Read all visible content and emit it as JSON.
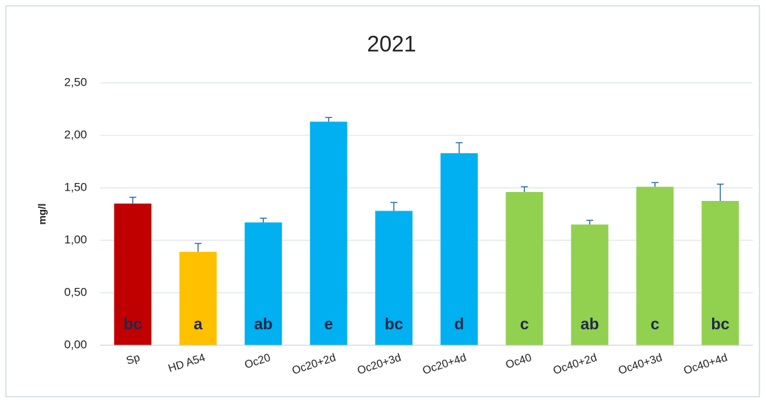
{
  "chart_data": {
    "type": "bar",
    "title": "2021",
    "y_label": "mg/l",
    "categories": [
      "Sp",
      "HD A54",
      "Oc20",
      "Oc20+2d",
      "Oc20+3d",
      "Oc20+4d",
      "Oc40",
      "Oc40+2d",
      "Oc40+3d",
      "Oc40+4d"
    ],
    "values": [
      1.35,
      0.89,
      1.17,
      2.13,
      1.28,
      1.83,
      1.46,
      1.15,
      1.51,
      1.375
    ],
    "errors": [
      0.06,
      0.08,
      0.04,
      0.04,
      0.08,
      0.1,
      0.05,
      0.04,
      0.04,
      0.16
    ],
    "colors": [
      "#c00000",
      "#ffc000",
      "#00b0f0",
      "#00b0f0",
      "#00b0f0",
      "#00b0f0",
      "#92d050",
      "#92d050",
      "#92d050",
      "#92d050"
    ],
    "error_color": "#2e6da4",
    "annotations": [
      "bc",
      "a",
      "ab",
      "e",
      "bc",
      "d",
      "c",
      "ab",
      "c",
      "bc"
    ],
    "ylim": [
      0,
      2.5
    ],
    "yticks": [
      {
        "value": 0,
        "label": "0,00"
      },
      {
        "value": 0.5,
        "label": "0,50"
      },
      {
        "value": 1,
        "label": "1,00"
      },
      {
        "value": 1.5,
        "label": "1,50"
      },
      {
        "value": 2,
        "label": "2,00"
      },
      {
        "value": 2.5,
        "label": "2,50"
      }
    ],
    "grid": true
  }
}
